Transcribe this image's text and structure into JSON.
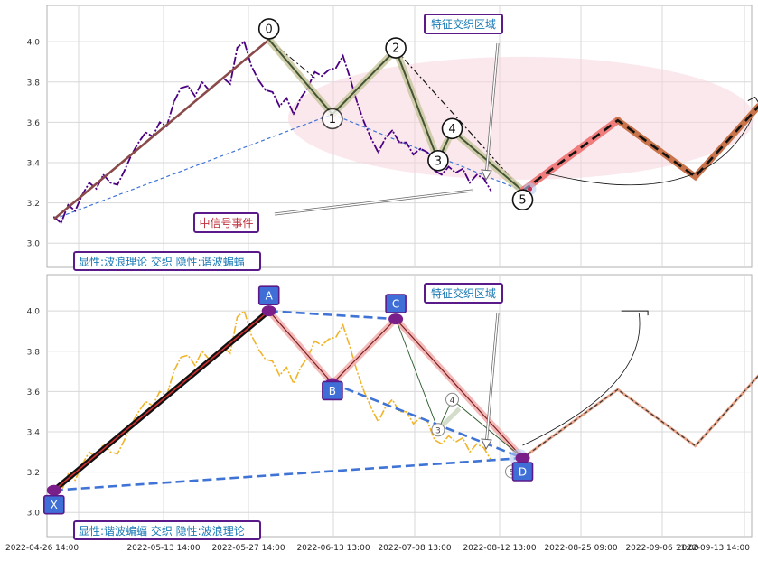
{
  "x_axis": {
    "tick_labels": [
      "2022-04-26 14:00",
      "2022-05-13 14:00",
      "2022-05-27 14:00",
      "2022-06-13 13:00",
      "2022-07-08 13:00",
      "2022-08-12 13:00",
      "2022-08-25 09:00",
      "2022-09-06 11:00",
      "2022-09-13 14:00"
    ]
  },
  "colors": {
    "price_top": "#4b0082",
    "price_bottom": "#f0b429",
    "wave_brown": "#8b4a4a",
    "projection_red": "#f07c7c",
    "projection_brown": "#c8734a",
    "dash_blue": "#3f74d6",
    "label_purple": "#5b1a8a",
    "label_teal": "#1a7ab5",
    "ellipse": "#f8d5de"
  },
  "chart_data": [
    {
      "type": "line",
      "panel": "top",
      "y_ticks": [
        "3.0",
        "3.2",
        "3.4",
        "3.6",
        "3.8",
        "4.0"
      ],
      "ylim": [
        2.88,
        4.18
      ],
      "x_index_range": [
        0,
        100
      ],
      "annotations": {
        "region_label": "特征交织区域",
        "signal_label": "中信号事件",
        "legend": "显性:波浪理论 交织 隐性:谐波蝙蝠"
      },
      "price_series": {
        "name": "",
        "x": [
          1,
          2,
          3,
          4,
          5,
          6,
          7,
          8,
          9,
          10,
          11,
          12,
          13,
          14,
          15,
          16,
          17,
          18,
          19,
          20,
          21,
          22,
          23,
          24,
          25,
          26,
          27,
          28,
          29,
          30,
          31,
          32,
          33,
          34,
          35,
          36,
          37,
          38,
          39,
          40,
          41,
          42,
          43,
          44,
          45,
          46,
          47,
          48,
          49,
          50,
          51,
          52,
          53,
          54,
          55,
          56,
          57,
          58,
          59,
          60,
          61,
          62,
          63
        ],
        "values": [
          3.13,
          3.1,
          3.19,
          3.16,
          3.24,
          3.3,
          3.27,
          3.34,
          3.3,
          3.29,
          3.36,
          3.44,
          3.5,
          3.55,
          3.53,
          3.6,
          3.58,
          3.7,
          3.77,
          3.78,
          3.73,
          3.8,
          3.76,
          3.79,
          3.82,
          3.79,
          3.97,
          4.0,
          3.88,
          3.81,
          3.76,
          3.75,
          3.68,
          3.72,
          3.64,
          3.72,
          3.77,
          3.85,
          3.83,
          3.86,
          3.87,
          3.93,
          3.82,
          3.7,
          3.6,
          3.52,
          3.45,
          3.52,
          3.56,
          3.5,
          3.5,
          3.44,
          3.47,
          3.45,
          3.36,
          3.34,
          3.38,
          3.35,
          3.37,
          3.3,
          3.34,
          3.32,
          3.26
        ]
      },
      "wave_points": [
        {
          "label": "0",
          "x": 31.5,
          "y": 4.01
        },
        {
          "label": "1",
          "x": 40.5,
          "y": 3.64
        },
        {
          "label": "2",
          "x": 49.5,
          "y": 3.96
        },
        {
          "label": "3",
          "x": 55.5,
          "y": 3.41
        },
        {
          "label": "4",
          "x": 57.5,
          "y": 3.56
        },
        {
          "label": "5",
          "x": 67.5,
          "y": 3.26
        }
      ],
      "lead_in": {
        "x": [
          1,
          31.5
        ],
        "y": [
          3.12,
          4.01
        ]
      },
      "projection": {
        "x": [
          67.5,
          81,
          92,
          101
        ],
        "y": [
          3.26,
          3.61,
          3.33,
          3.68
        ]
      }
    },
    {
      "type": "line",
      "panel": "bottom",
      "y_ticks": [
        "3.0",
        "3.2",
        "3.4",
        "3.6",
        "3.8",
        "4.0"
      ],
      "ylim": [
        2.88,
        4.18
      ],
      "x_index_range": [
        0,
        100
      ],
      "annotations": {
        "region_label": "特征交织区域",
        "legend": "显性:谐波蝙蝠 交织 隐性:波浪理论",
        "small_labels": [
          "4",
          "3",
          "5"
        ]
      },
      "price_series": {
        "name": "",
        "x": [
          1,
          2,
          3,
          4,
          5,
          6,
          7,
          8,
          9,
          10,
          11,
          12,
          13,
          14,
          15,
          16,
          17,
          18,
          19,
          20,
          21,
          22,
          23,
          24,
          25,
          26,
          27,
          28,
          29,
          30,
          31,
          32,
          33,
          34,
          35,
          36,
          37,
          38,
          39,
          40,
          41,
          42,
          43,
          44,
          45,
          46,
          47,
          48,
          49,
          50,
          51,
          52,
          53,
          54,
          55,
          56,
          57,
          58,
          59,
          60,
          61,
          62,
          63
        ],
        "values": [
          3.13,
          3.1,
          3.19,
          3.16,
          3.24,
          3.3,
          3.27,
          3.34,
          3.3,
          3.29,
          3.36,
          3.44,
          3.5,
          3.55,
          3.53,
          3.6,
          3.58,
          3.7,
          3.77,
          3.78,
          3.73,
          3.8,
          3.76,
          3.79,
          3.82,
          3.79,
          3.97,
          4.0,
          3.88,
          3.81,
          3.76,
          3.75,
          3.68,
          3.72,
          3.64,
          3.72,
          3.77,
          3.85,
          3.83,
          3.86,
          3.87,
          3.93,
          3.82,
          3.7,
          3.6,
          3.52,
          3.45,
          3.52,
          3.56,
          3.5,
          3.5,
          3.44,
          3.47,
          3.45,
          3.36,
          3.34,
          3.38,
          3.35,
          3.37,
          3.3,
          3.34,
          3.32,
          3.26
        ]
      },
      "harmonic_points": [
        {
          "label": "X",
          "x": 1,
          "y": 3.11
        },
        {
          "label": "A",
          "x": 31.5,
          "y": 4.0
        },
        {
          "label": "B",
          "x": 40.5,
          "y": 3.64
        },
        {
          "label": "C",
          "x": 49.5,
          "y": 3.96
        },
        {
          "label": "D",
          "x": 67.5,
          "y": 3.27
        }
      ],
      "projection": {
        "x": [
          67.5,
          81,
          92,
          101
        ],
        "y": [
          3.27,
          3.61,
          3.33,
          3.68
        ]
      }
    }
  ]
}
